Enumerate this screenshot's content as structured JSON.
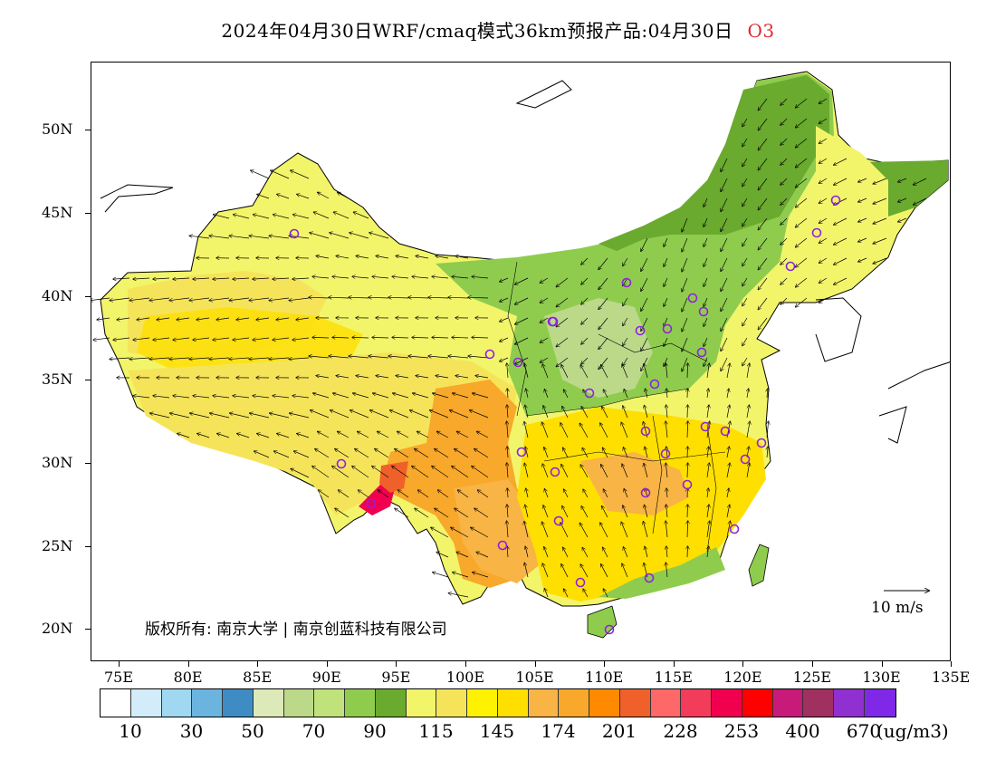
{
  "title": {
    "main": "2024年04月30日WRF/cmaq模式36km预报产品:04月30日",
    "species": "O3",
    "species_color": "#e0282e"
  },
  "axes": {
    "lat_labels": [
      "50N",
      "45N",
      "40N",
      "35N",
      "30N",
      "25N",
      "20N"
    ],
    "lon_labels": [
      "75E",
      "80E",
      "85E",
      "90E",
      "95E",
      "100E",
      "105E",
      "110E",
      "115E",
      "120E",
      "125E",
      "130E",
      "135E"
    ]
  },
  "copyright": "版权所有: 南京大学 | 南京创蓝科技有限公司",
  "wind_reference": "10  m/s",
  "colorbar": {
    "colors": [
      "#ffffff",
      "#d2ecfa",
      "#a0d8f2",
      "#6cb4e0",
      "#3f8cc4",
      "#dde9b8",
      "#bcd98a",
      "#bfe27a",
      "#8fcc4e",
      "#6aaa2e",
      "#f2f56a",
      "#f5e45a",
      "#fff200",
      "#ffdf00",
      "#f8b444",
      "#f8a82a",
      "#ff8a00",
      "#f0602a",
      "#ff6868",
      "#f23c5a",
      "#f0004e",
      "#ff0000",
      "#c81a78",
      "#a03060",
      "#9030d0",
      "#8028e8"
    ],
    "labels": [
      "10",
      "30",
      "50",
      "70",
      "90",
      "115",
      "145",
      "174",
      "201",
      "228",
      "253",
      "400",
      "670"
    ],
    "unit": "(ug/m3)"
  },
  "legend_regions": {
    "ne_green": "#6aaa2e",
    "light_green": "#8fcc4e",
    "yellow": "#f5e45a",
    "bright_yellow": "#fff200",
    "orange": "#f8a82a",
    "deep_orange": "#f0602a",
    "red": "#f0004e"
  },
  "station_marker_color": "#9020e0"
}
